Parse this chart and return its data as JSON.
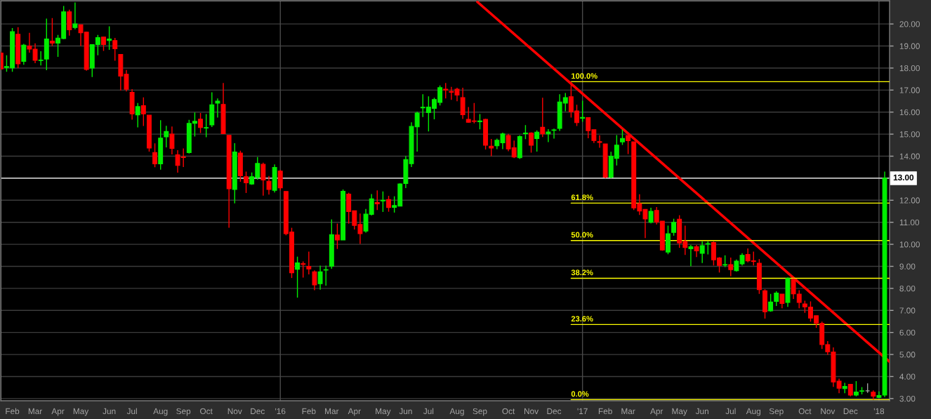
{
  "chart_data": {
    "type": "candlestick",
    "x": [
      "2015-01-23",
      "2015-01-30",
      "2015-02-06",
      "2015-02-13",
      "2015-02-20",
      "2015-02-27",
      "2015-03-06",
      "2015-03-13",
      "2015-03-20",
      "2015-03-27",
      "2015-04-03",
      "2015-04-10",
      "2015-04-17",
      "2015-04-24",
      "2015-05-01",
      "2015-05-08",
      "2015-05-15",
      "2015-05-22",
      "2015-05-29",
      "2015-06-05",
      "2015-06-12",
      "2015-06-19",
      "2015-06-26",
      "2015-07-03",
      "2015-07-10",
      "2015-07-17",
      "2015-07-24",
      "2015-07-31",
      "2015-08-07",
      "2015-08-14",
      "2015-08-21",
      "2015-08-28",
      "2015-09-04",
      "2015-09-11",
      "2015-09-18",
      "2015-09-25",
      "2015-10-02",
      "2015-10-09",
      "2015-10-16",
      "2015-10-23",
      "2015-10-30",
      "2015-11-06",
      "2015-11-13",
      "2015-11-20",
      "2015-11-27",
      "2015-12-04",
      "2015-12-11",
      "2015-12-18",
      "2015-12-25",
      "2016-01-01",
      "2016-01-08",
      "2016-01-15",
      "2016-01-22",
      "2016-01-29",
      "2016-02-05",
      "2016-02-12",
      "2016-02-19",
      "2016-02-26",
      "2016-03-04",
      "2016-03-11",
      "2016-03-18",
      "2016-03-25",
      "2016-04-01",
      "2016-04-08",
      "2016-04-15",
      "2016-04-22",
      "2016-04-29",
      "2016-05-06",
      "2016-05-13",
      "2016-05-20",
      "2016-05-27",
      "2016-06-03",
      "2016-06-10",
      "2016-06-17",
      "2016-06-24",
      "2016-07-01",
      "2016-07-08",
      "2016-07-15",
      "2016-07-22",
      "2016-07-29",
      "2016-08-05",
      "2016-08-12",
      "2016-08-19",
      "2016-08-26",
      "2016-09-02",
      "2016-09-09",
      "2016-09-16",
      "2016-09-23",
      "2016-09-30",
      "2016-10-07",
      "2016-10-14",
      "2016-10-21",
      "2016-10-28",
      "2016-11-04",
      "2016-11-11",
      "2016-11-18",
      "2016-11-25",
      "2016-12-02",
      "2016-12-09",
      "2016-12-16",
      "2016-12-23",
      "2016-12-30",
      "2017-01-06",
      "2017-01-13",
      "2017-01-20",
      "2017-01-27",
      "2017-02-03",
      "2017-02-10",
      "2017-02-17",
      "2017-02-24",
      "2017-03-03",
      "2017-03-10",
      "2017-03-17",
      "2017-03-24",
      "2017-03-31",
      "2017-04-07",
      "2017-04-14",
      "2017-04-21",
      "2017-04-28",
      "2017-05-05",
      "2017-05-12",
      "2017-05-19",
      "2017-05-26",
      "2017-06-02",
      "2017-06-09",
      "2017-06-16",
      "2017-06-23",
      "2017-06-30",
      "2017-07-07",
      "2017-07-14",
      "2017-07-21",
      "2017-07-28",
      "2017-08-04",
      "2017-08-11",
      "2017-08-18",
      "2017-08-25",
      "2017-09-01",
      "2017-09-08",
      "2017-09-15",
      "2017-09-22",
      "2017-09-29",
      "2017-10-06",
      "2017-10-13",
      "2017-10-20",
      "2017-10-27",
      "2017-11-03",
      "2017-11-10",
      "2017-11-17",
      "2017-11-24",
      "2017-12-01",
      "2017-12-08",
      "2017-12-15",
      "2017-12-22",
      "2017-12-29",
      "2018-01-05",
      "2018-01-12"
    ],
    "ohlc": [
      [
        18.68,
        18.75,
        17.9,
        17.96
      ],
      [
        18.02,
        18.58,
        17.83,
        18.07
      ],
      [
        18.01,
        19.81,
        17.83,
        19.65
      ],
      [
        19.53,
        19.85,
        18.0,
        18.19
      ],
      [
        18.3,
        19.1,
        18.15,
        19.04
      ],
      [
        19.0,
        19.6,
        18.7,
        18.86
      ],
      [
        18.86,
        19.12,
        18.22,
        18.35
      ],
      [
        18.34,
        18.76,
        18.12,
        18.36
      ],
      [
        18.41,
        20.24,
        17.9,
        19.32
      ],
      [
        19.22,
        20.27,
        19.0,
        19.13
      ],
      [
        19.13,
        19.5,
        18.51,
        19.36
      ],
      [
        19.34,
        20.82,
        19.31,
        20.55
      ],
      [
        20.55,
        20.65,
        19.47,
        19.74
      ],
      [
        19.84,
        20.98,
        19.76,
        20.0
      ],
      [
        19.96,
        19.97,
        19.0,
        19.6
      ],
      [
        19.63,
        19.65,
        17.88,
        17.94
      ],
      [
        18.0,
        19.06,
        17.59,
        19.06
      ],
      [
        19.07,
        19.5,
        18.58,
        19.38
      ],
      [
        19.41,
        19.41,
        18.78,
        19.07
      ],
      [
        19.25,
        19.89,
        18.83,
        19.32
      ],
      [
        19.25,
        19.37,
        18.33,
        18.88
      ],
      [
        18.62,
        18.62,
        16.98,
        17.63
      ],
      [
        17.72,
        17.91,
        16.94,
        17.04
      ],
      [
        16.9,
        17.04,
        15.66,
        15.92
      ],
      [
        15.87,
        16.41,
        15.31,
        16.25
      ],
      [
        16.29,
        16.67,
        15.37,
        15.92
      ],
      [
        15.86,
        15.86,
        14.21,
        14.37
      ],
      [
        14.17,
        14.58,
        13.5,
        13.65
      ],
      [
        13.65,
        15.63,
        13.39,
        14.82
      ],
      [
        14.88,
        15.38,
        14.4,
        15.12
      ],
      [
        15.0,
        15.35,
        14.08,
        14.35
      ],
      [
        14.06,
        14.27,
        13.25,
        13.58
      ],
      [
        13.97,
        14.35,
        13.51,
        13.94
      ],
      [
        14.16,
        15.65,
        14.12,
        15.49
      ],
      [
        15.49,
        15.98,
        14.89,
        15.58
      ],
      [
        15.68,
        15.96,
        15.05,
        15.3
      ],
      [
        15.28,
        15.91,
        14.86,
        15.3
      ],
      [
        15.42,
        16.9,
        15.32,
        16.33
      ],
      [
        16.41,
        16.62,
        15.75,
        16.5
      ],
      [
        16.35,
        17.32,
        15.02,
        15.02
      ],
      [
        14.95,
        14.95,
        10.75,
        12.52
      ],
      [
        12.49,
        14.59,
        11.86,
        14.19
      ],
      [
        14.14,
        14.25,
        12.84,
        13.11
      ],
      [
        13.07,
        13.3,
        12.33,
        12.79
      ],
      [
        12.74,
        13.26,
        12.7,
        13.07
      ],
      [
        13.03,
        13.96,
        12.93,
        13.67
      ],
      [
        13.63,
        13.71,
        12.21,
        12.92
      ],
      [
        12.86,
        13.1,
        12.26,
        12.49
      ],
      [
        12.45,
        13.63,
        12.35,
        13.49
      ],
      [
        13.32,
        13.37,
        12.45,
        12.56
      ],
      [
        12.4,
        12.4,
        10.41,
        10.48
      ],
      [
        10.56,
        10.75,
        8.47,
        8.71
      ],
      [
        8.87,
        9.44,
        7.58,
        9.16
      ],
      [
        9.12,
        9.22,
        8.49,
        9.09
      ],
      [
        9.0,
        9.67,
        8.63,
        8.88
      ],
      [
        8.75,
        8.82,
        7.92,
        8.16
      ],
      [
        8.21,
        9.03,
        7.94,
        8.75
      ],
      [
        8.83,
        9.03,
        8.12,
        8.85
      ],
      [
        9.01,
        11.13,
        8.89,
        10.44
      ],
      [
        10.42,
        10.94,
        9.79,
        10.2
      ],
      [
        10.2,
        12.49,
        10.2,
        12.41
      ],
      [
        12.28,
        12.34,
        10.94,
        11.49
      ],
      [
        11.52,
        11.52,
        10.67,
        10.86
      ],
      [
        10.9,
        11.4,
        10.02,
        10.48
      ],
      [
        10.6,
        11.6,
        10.53,
        11.37
      ],
      [
        11.36,
        12.28,
        11.31,
        12.06
      ],
      [
        11.9,
        12.45,
        11.56,
        11.84
      ],
      [
        11.97,
        12.4,
        11.47,
        12.0
      ],
      [
        12.03,
        12.2,
        11.48,
        11.67
      ],
      [
        11.68,
        12.18,
        11.44,
        11.76
      ],
      [
        11.73,
        12.77,
        11.73,
        12.74
      ],
      [
        12.76,
        14.01,
        12.55,
        13.85
      ],
      [
        13.66,
        15.54,
        13.51,
        15.35
      ],
      [
        15.33,
        16.02,
        14.21,
        15.96
      ],
      [
        16.19,
        16.81,
        15.78,
        16.22
      ],
      [
        15.98,
        16.72,
        15.12,
        16.23
      ],
      [
        16.17,
        16.65,
        15.67,
        16.57
      ],
      [
        16.44,
        17.21,
        16.3,
        17.11
      ],
      [
        17.04,
        17.32,
        16.62,
        17.0
      ],
      [
        16.94,
        17.15,
        16.56,
        16.9
      ],
      [
        17.04,
        17.11,
        16.49,
        16.77
      ],
      [
        16.66,
        17.11,
        15.69,
        15.88
      ],
      [
        15.67,
        16.23,
        15.52,
        15.54
      ],
      [
        15.6,
        16.41,
        15.49,
        15.58
      ],
      [
        15.56,
        15.91,
        15.22,
        15.6
      ],
      [
        15.67,
        15.7,
        14.3,
        14.5
      ],
      [
        14.45,
        14.78,
        14.0,
        14.37
      ],
      [
        14.47,
        14.8,
        14.32,
        14.72
      ],
      [
        14.61,
        15.07,
        14.32,
        15.01
      ],
      [
        14.94,
        15.01,
        14.22,
        14.33
      ],
      [
        14.38,
        14.71,
        13.91,
        13.96
      ],
      [
        13.93,
        14.95,
        13.87,
        14.89
      ],
      [
        15.02,
        15.41,
        14.77,
        15.05
      ],
      [
        15.05,
        15.08,
        14.16,
        14.5
      ],
      [
        14.8,
        15.17,
        14.21,
        15.09
      ],
      [
        15.31,
        16.65,
        14.87,
        15.01
      ],
      [
        15.01,
        15.23,
        14.64,
        15.1
      ],
      [
        15.17,
        15.25,
        14.8,
        15.19
      ],
      [
        15.26,
        16.81,
        15.15,
        16.46
      ],
      [
        16.41,
        16.87,
        16.04,
        16.66
      ],
      [
        16.7,
        17.38,
        15.75,
        16.02
      ],
      [
        16.05,
        16.33,
        15.37,
        15.52
      ],
      [
        15.72,
        16.52,
        15.56,
        15.76
      ],
      [
        15.75,
        15.75,
        14.81,
        15.16
      ],
      [
        15.2,
        15.2,
        14.6,
        14.71
      ],
      [
        14.66,
        14.95,
        14.38,
        14.62
      ],
      [
        14.56,
        14.56,
        13.0,
        13.05
      ],
      [
        13.05,
        14.2,
        13.0,
        14.0
      ],
      [
        13.9,
        14.96,
        13.58,
        14.5
      ],
      [
        14.65,
        15.21,
        14.51,
        14.8
      ],
      [
        14.94,
        14.94,
        14.1,
        14.7
      ],
      [
        14.65,
        14.65,
        11.56,
        11.65
      ],
      [
        11.85,
        12.27,
        11.33,
        11.51
      ],
      [
        11.59,
        11.59,
        10.28,
        11.15
      ],
      [
        11.0,
        11.66,
        10.95,
        11.5
      ],
      [
        11.54,
        11.69,
        10.9,
        11.01
      ],
      [
        11.05,
        11.05,
        9.71,
        9.74
      ],
      [
        9.65,
        10.85,
        9.55,
        10.48
      ],
      [
        10.54,
        11.16,
        10.39,
        11.0
      ],
      [
        11.14,
        11.32,
        9.84,
        10.06
      ],
      [
        10.13,
        10.85,
        9.52,
        9.85
      ],
      [
        9.8,
        9.97,
        9.01,
        9.89
      ],
      [
        9.89,
        9.97,
        9.42,
        9.7
      ],
      [
        9.59,
        10.14,
        9.15,
        9.94
      ],
      [
        10.01,
        10.14,
        9.54,
        10.03
      ],
      [
        10.08,
        10.13,
        9.04,
        9.3
      ],
      [
        9.38,
        9.42,
        8.72,
        9.04
      ],
      [
        9.06,
        9.5,
        8.97,
        9.08
      ],
      [
        9.08,
        9.4,
        8.55,
        8.85
      ],
      [
        8.8,
        9.31,
        8.76,
        9.24
      ],
      [
        9.11,
        9.6,
        9.04,
        9.5
      ],
      [
        9.54,
        9.81,
        9.18,
        9.25
      ],
      [
        9.25,
        9.67,
        9.04,
        9.22
      ],
      [
        9.14,
        9.33,
        7.75,
        7.94
      ],
      [
        7.89,
        7.96,
        6.63,
        6.94
      ],
      [
        6.98,
        7.75,
        6.94,
        7.38
      ],
      [
        7.41,
        7.87,
        7.2,
        7.79
      ],
      [
        7.74,
        7.74,
        7.1,
        7.31
      ],
      [
        7.36,
        8.5,
        7.16,
        8.45
      ],
      [
        8.42,
        8.45,
        7.52,
        7.75
      ],
      [
        7.74,
        7.92,
        7.1,
        7.36
      ],
      [
        7.29,
        7.44,
        6.89,
        7.16
      ],
      [
        7.15,
        7.41,
        6.49,
        6.65
      ],
      [
        6.76,
        6.76,
        6.21,
        6.41
      ],
      [
        6.41,
        6.49,
        5.25,
        5.45
      ],
      [
        5.45,
        5.61,
        4.99,
        5.12
      ],
      [
        5.11,
        5.32,
        3.53,
        3.75
      ],
      [
        3.79,
        3.9,
        3.24,
        3.47
      ],
      [
        3.45,
        3.71,
        3.24,
        3.55
      ],
      [
        3.65,
        3.65,
        3.1,
        3.16
      ],
      [
        3.16,
        3.79,
        3.1,
        3.3
      ],
      [
        3.33,
        3.52,
        3.19,
        3.35
      ],
      [
        3.35,
        3.69,
        3.26,
        3.35
      ],
      [
        3.29,
        3.37,
        2.95,
        3.11
      ],
      [
        3.05,
        3.32,
        3.03,
        3.14
      ],
      [
        3.16,
        13.3,
        3.07,
        13.0
      ]
    ],
    "colors": [
      "#ff0000",
      "#00ee00",
      "#00ee00",
      "#ff0000",
      "#00ee00",
      "#ff0000",
      "#ff0000",
      "#00ee00",
      "#00ee00",
      "#ff0000",
      "#00ee00",
      "#00ee00",
      "#ff0000",
      "#00ee00",
      "#ff0000",
      "#ff0000",
      "#00ee00",
      "#00ee00",
      "#ff0000",
      "#00ee00",
      "#ff0000",
      "#ff0000",
      "#ff0000",
      "#ff0000",
      "#00ee00",
      "#ff0000",
      "#ff0000",
      "#ff0000",
      "#00ee00",
      "#00ee00",
      "#ff0000",
      "#ff0000",
      "#ff0000",
      "#00ee00",
      "#00ee00",
      "#ff0000",
      "#00ee00",
      "#00ee00",
      "#00ee00",
      "#ff0000",
      "#ff0000",
      "#00ee00",
      "#ff0000",
      "#ff0000",
      "#00ee00",
      "#00ee00",
      "#ff0000",
      "#ff0000",
      "#00ee00",
      "#ff0000",
      "#ff0000",
      "#ff0000",
      "#00ee00",
      "#ff0000",
      "#ff0000",
      "#ff0000",
      "#00ee00",
      "#00ee00",
      "#00ee00",
      "#ff0000",
      "#00ee00",
      "#ff0000",
      "#ff0000",
      "#ff0000",
      "#00ee00",
      "#00ee00",
      "#ff0000",
      "#00ee00",
      "#ff0000",
      "#00ee00",
      "#00ee00",
      "#00ee00",
      "#00ee00",
      "#00ee00",
      "#00ee00",
      "#00ee00",
      "#00ee00",
      "#00ee00",
      "#ff0000",
      "#ff0000",
      "#ff0000",
      "#ff0000",
      "#ff0000",
      "#ff0000",
      "#00ee00",
      "#ff0000",
      "#ff0000",
      "#00ee00",
      "#00ee00",
      "#ff0000",
      "#ff0000",
      "#00ee00",
      "#00ee00",
      "#ff0000",
      "#00ee00",
      "#ff0000",
      "#00ee00",
      "#00ee00",
      "#00ee00",
      "#00ee00",
      "#ff0000",
      "#ff0000",
      "#00ee00",
      "#ff0000",
      "#ff0000",
      "#ff0000",
      "#ff0000",
      "#00ee00",
      "#00ee00",
      "#00ee00",
      "#ff0000",
      "#ff0000",
      "#ff0000",
      "#ff0000",
      "#00ee00",
      "#ff0000",
      "#ff0000",
      "#00ee00",
      "#00ee00",
      "#ff0000",
      "#ff0000",
      "#00ee00",
      "#ff0000",
      "#00ee00",
      "#00ee00",
      "#ff0000",
      "#ff0000",
      "#00ee00",
      "#ff0000",
      "#00ee00",
      "#00ee00",
      "#ff0000",
      "#ff0000",
      "#ff0000",
      "#ff0000",
      "#00ee00",
      "#00ee00",
      "#ff0000",
      "#00ee00",
      "#ff0000",
      "#ff0000",
      "#ff0000",
      "#ff0000",
      "#ff0000",
      "#ff0000",
      "#ff0000",
      "#ff0000",
      "#ff0000",
      "#00ee00",
      "#ff0000",
      "#00ee00",
      "#00ee00",
      "#a0a0a0",
      "#ff0000",
      "#00ee00",
      "#00ee00"
    ],
    "series": [
      {
        "type": "line",
        "color": "#ff0000",
        "x": [
          "2016-08-30",
          "2018-01-18"
        ],
        "values": [
          21.0,
          4.67
        ]
      },
      {
        "type": "line",
        "name": "100.0%",
        "color": "#ffff00",
        "x": [
          "2016-12-23",
          "2018-01-18"
        ],
        "values": [
          17.38,
          17.38
        ]
      },
      {
        "type": "line",
        "name": "61.8%",
        "color": "#ffff00",
        "x": [
          "2016-12-23",
          "2018-01-18"
        ],
        "values": [
          11.87,
          11.87
        ]
      },
      {
        "type": "line",
        "name": "50.0%",
        "color": "#ffff00",
        "x": [
          "2016-12-23",
          "2018-01-18"
        ],
        "values": [
          10.17,
          10.17
        ]
      },
      {
        "type": "line",
        "name": "38.2%",
        "color": "#ffff00",
        "x": [
          "2016-12-23",
          "2018-01-18"
        ],
        "values": [
          8.46,
          8.46
        ]
      },
      {
        "type": "line",
        "name": "23.6%",
        "color": "#ffff00",
        "x": [
          "2016-12-23",
          "2018-01-18"
        ],
        "values": [
          6.36,
          6.36
        ]
      },
      {
        "type": "line",
        "name": "0.0%",
        "color": "#ffff00",
        "x": [
          "2016-12-23",
          "2018-01-18"
        ],
        "values": [
          2.95,
          2.95
        ]
      }
    ],
    "ref_lines": [
      {
        "axis": "y",
        "value": 13.0,
        "label": "13.00",
        "color": "#ffffff"
      },
      {
        "axis": "x",
        "value": "2016-01-01",
        "color": "#4a4a4a"
      },
      {
        "axis": "x",
        "value": "2017-01-06",
        "color": "#4a4a4a"
      },
      {
        "axis": "x",
        "value": "2018-01-05",
        "color": "#4a4a4a"
      }
    ],
    "xlim": [
      "2015-01-23",
      "2018-01-18"
    ],
    "xticks": [
      {
        "value": "2015-02-06",
        "label": "Feb"
      },
      {
        "value": "2015-03-06",
        "label": "Mar"
      },
      {
        "value": "2015-04-03",
        "label": "Apr"
      },
      {
        "value": "2015-05-01",
        "label": "May"
      },
      {
        "value": "2015-06-05",
        "label": "Jun"
      },
      {
        "value": "2015-07-03",
        "label": "Jul"
      },
      {
        "value": "2015-08-07",
        "label": "Aug"
      },
      {
        "value": "2015-09-04",
        "label": "Sep"
      },
      {
        "value": "2015-10-02",
        "label": "Oct"
      },
      {
        "value": "2015-11-06",
        "label": "Nov"
      },
      {
        "value": "2015-12-04",
        "label": "Dec"
      },
      {
        "value": "2016-01-01",
        "label": "'16"
      },
      {
        "value": "2016-02-05",
        "label": "Feb"
      },
      {
        "value": "2016-03-04",
        "label": "Mar"
      },
      {
        "value": "2016-04-01",
        "label": "Apr"
      },
      {
        "value": "2016-05-06",
        "label": "May"
      },
      {
        "value": "2016-06-03",
        "label": "Jun"
      },
      {
        "value": "2016-07-01",
        "label": "Jul"
      },
      {
        "value": "2016-08-05",
        "label": "Aug"
      },
      {
        "value": "2016-09-02",
        "label": "Sep"
      },
      {
        "value": "2016-10-07",
        "label": "Oct"
      },
      {
        "value": "2016-11-04",
        "label": "Nov"
      },
      {
        "value": "2016-12-02",
        "label": "Dec"
      },
      {
        "value": "2017-01-06",
        "label": "'17"
      },
      {
        "value": "2017-02-03",
        "label": "Feb"
      },
      {
        "value": "2017-03-03",
        "label": "Mar"
      },
      {
        "value": "2017-04-07",
        "label": "Apr"
      },
      {
        "value": "2017-05-05",
        "label": "May"
      },
      {
        "value": "2017-06-02",
        "label": "Jun"
      },
      {
        "value": "2017-07-07",
        "label": "Jul"
      },
      {
        "value": "2017-08-04",
        "label": "Aug"
      },
      {
        "value": "2017-09-01",
        "label": "Sep"
      },
      {
        "value": "2017-10-06",
        "label": "Oct"
      },
      {
        "value": "2017-11-03",
        "label": "Nov"
      },
      {
        "value": "2017-12-01",
        "label": "Dec"
      },
      {
        "value": "2018-01-05",
        "label": "'18"
      }
    ],
    "ylim": [
      2.9,
      21.05
    ],
    "yticks": [
      {
        "value": 3,
        "label": "3.00"
      },
      {
        "value": 4,
        "label": "4.00"
      },
      {
        "value": 5,
        "label": "5.00"
      },
      {
        "value": 6,
        "label": "6.00"
      },
      {
        "value": 7,
        "label": "7.00"
      },
      {
        "value": 8,
        "label": "8.00"
      },
      {
        "value": 9,
        "label": "9.00"
      },
      {
        "value": 10,
        "label": "10.00"
      },
      {
        "value": 11,
        "label": "11.00"
      },
      {
        "value": 12,
        "label": "12.00"
      },
      {
        "value": 13,
        "label": null
      },
      {
        "value": 14,
        "label": "14.00"
      },
      {
        "value": 15,
        "label": "15.00"
      },
      {
        "value": 16,
        "label": "16.00"
      },
      {
        "value": 17,
        "label": "17.00"
      },
      {
        "value": 18,
        "label": "18.00"
      },
      {
        "value": 19,
        "label": "19.00"
      },
      {
        "value": 20,
        "label": "20.00"
      }
    ],
    "grid": "y"
  }
}
